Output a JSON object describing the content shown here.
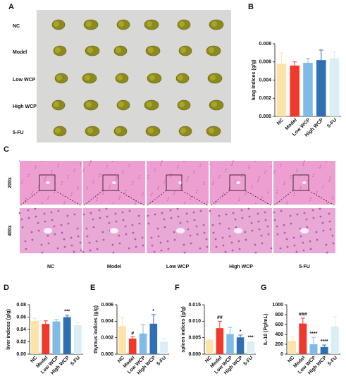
{
  "panel_a": {
    "label": "A",
    "rows": [
      "NC",
      "Model",
      "Low WCP",
      "High WCP",
      "5-FU"
    ]
  },
  "panel_c": {
    "label": "C",
    "magnifications": [
      "200x",
      "400x"
    ],
    "groups": [
      "NC",
      "Model",
      "Low WCP",
      "High WCP",
      "5-FU"
    ]
  },
  "chart_data": [
    {
      "panel": "B",
      "type": "bar",
      "ylabel": "lung indices (g/g)",
      "categories": [
        "NC",
        "Model",
        "Low WCP",
        "High WCP",
        "5-FU"
      ],
      "values": [
        0.0058,
        0.0056,
        0.0059,
        0.0062,
        0.0064
      ],
      "errors": [
        0.0012,
        0.0004,
        0.0005,
        0.0011,
        0.0007
      ],
      "annotations": [
        null,
        null,
        null,
        null,
        null
      ],
      "colors": [
        "#fde3a7",
        "#f0392b",
        "#7fbbe6",
        "#2f6fb3",
        "#d9eef5"
      ],
      "ylim": [
        0,
        0.008
      ],
      "yticks": [
        {
          "value": 0,
          "label": "0.000"
        },
        0.002,
        0.004,
        0.006,
        0.008
      ]
    },
    {
      "panel": "D",
      "type": "bar",
      "ylabel": "liver indices (g/g)",
      "categories": [
        "NC",
        "Model",
        "Low WCP",
        "High WCP",
        "5-FU"
      ],
      "values": [
        0.054,
        0.049,
        0.053,
        0.06,
        0.047
      ],
      "errors": [
        0.004,
        0.005,
        0.003,
        0.003,
        0.004
      ],
      "annotations": [
        null,
        null,
        null,
        "***",
        null
      ],
      "colors": [
        "#fde3a7",
        "#f0392b",
        "#7fbbe6",
        "#2f6fb3",
        "#d9eef5"
      ],
      "ylim": [
        0,
        0.08
      ],
      "yticks": [
        {
          "value": 0,
          "label": "0.00"
        },
        0.02,
        0.04,
        0.06,
        0.08
      ]
    },
    {
      "panel": "E",
      "type": "bar",
      "ylabel": "thymus indices (g/g)",
      "categories": [
        "NC",
        "Model",
        "Low WCP",
        "High WCP",
        "5-FU"
      ],
      "values": [
        0.0034,
        0.0019,
        0.0025,
        0.0037,
        0.0015
      ],
      "errors": [
        0.0011,
        0.0002,
        0.0011,
        0.0011,
        0.0004
      ],
      "annotations": [
        null,
        "#",
        null,
        "*",
        null
      ],
      "colors": [
        "#fde3a7",
        "#f0392b",
        "#7fbbe6",
        "#2f6fb3",
        "#d9eef5"
      ],
      "ylim": [
        0,
        0.006
      ],
      "yticks": [
        {
          "value": 0,
          "label": "0.000"
        },
        0.002,
        0.004,
        0.006
      ]
    },
    {
      "panel": "F",
      "type": "bar",
      "ylabel": "spleen indices (g/g)",
      "categories": [
        "NC",
        "Model",
        "Low WCP",
        "High WCP",
        "5-FU"
      ],
      "values": [
        0.0043,
        0.0079,
        0.0061,
        0.0051,
        0.0037
      ],
      "errors": [
        0.0002,
        0.0021,
        0.002,
        0.0007,
        0.0002
      ],
      "annotations": [
        null,
        "##",
        null,
        "*",
        "***"
      ],
      "colors": [
        "#fde3a7",
        "#f0392b",
        "#7fbbe6",
        "#2f6fb3",
        "#d9eef5"
      ],
      "ylim": [
        0,
        0.015
      ],
      "yticks": [
        {
          "value": 0,
          "label": "0.000"
        },
        0.005,
        {
          "value": 0.01,
          "label": "0.010"
        },
        0.015
      ]
    },
    {
      "panel": "G",
      "type": "bar",
      "ylabel": "IL-10 (Pg/mL)",
      "categories": [
        "NC",
        "Model",
        "Low WCP",
        "High WCP",
        "5-FU"
      ],
      "values": [
        270,
        620,
        200,
        145,
        560
      ],
      "errors": [
        80,
        110,
        140,
        40,
        200
      ],
      "annotations": [
        null,
        "###",
        "****",
        "****",
        null
      ],
      "colors": [
        "#fde3a7",
        "#f0392b",
        "#7fbbe6",
        "#2f6fb3",
        "#d9eef5"
      ],
      "ylim": [
        0,
        1000
      ],
      "yticks": [
        0,
        200,
        400,
        600,
        800,
        1000
      ]
    }
  ]
}
